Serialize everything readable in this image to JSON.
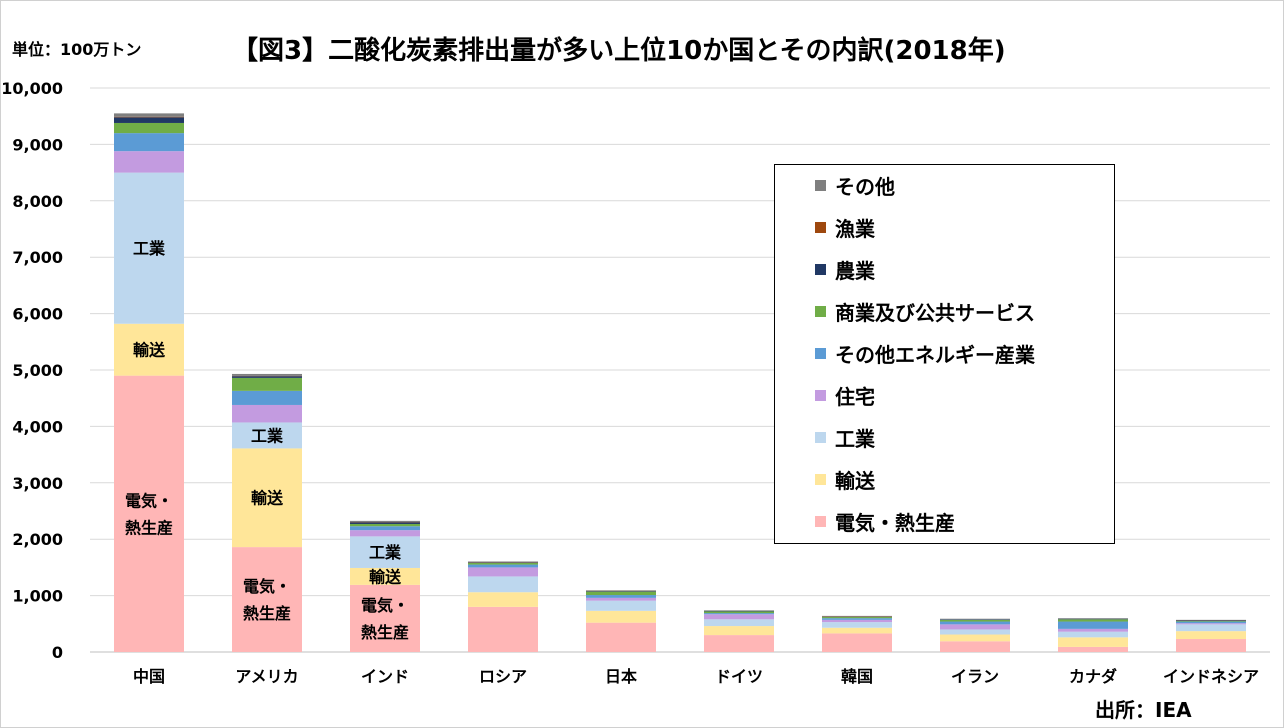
{
  "header": {
    "unit": "単位：100万トン",
    "title": "【図3】二酸化炭素排出量が多い上位10か国とその内訳(2018年)",
    "source": "出所：IEA"
  },
  "chart_data": {
    "type": "bar",
    "stacked": true,
    "categories": [
      "中国",
      "アメリカ",
      "インド",
      "ロシア",
      "日本",
      "ドイツ",
      "韓国",
      "イラン",
      "カナダ",
      "インドネシア"
    ],
    "ylim": [
      0,
      10000
    ],
    "yticks": [
      "0",
      "1,000",
      "2,000",
      "3,000",
      "4,000",
      "5,000",
      "6,000",
      "7,000",
      "8,000",
      "9,000",
      "10,000"
    ],
    "grid": true,
    "legend_position": "right",
    "series": [
      {
        "name": "電気・熱生産",
        "color": "#FFB6B6",
        "values": [
          4900,
          1860,
          1190,
          800,
          520,
          300,
          330,
          190,
          90,
          230
        ]
      },
      {
        "name": "輸送",
        "color": "#FFE699",
        "values": [
          920,
          1750,
          300,
          260,
          210,
          160,
          100,
          120,
          170,
          140
        ]
      },
      {
        "name": "工業",
        "color": "#BDD7EE",
        "values": [
          2680,
          460,
          560,
          280,
          180,
          120,
          100,
          90,
          100,
          120
        ]
      },
      {
        "name": "住宅",
        "color": "#C39BE0",
        "values": [
          380,
          310,
          110,
          160,
          50,
          90,
          40,
          90,
          50,
          20
        ]
      },
      {
        "name": "その他エネルギー産業",
        "color": "#5B9BD5",
        "values": [
          320,
          250,
          70,
          50,
          50,
          20,
          30,
          50,
          130,
          30
        ]
      },
      {
        "name": "商業及び公共サービス",
        "color": "#70AD47",
        "values": [
          180,
          230,
          40,
          30,
          60,
          30,
          20,
          30,
          40,
          10
        ]
      },
      {
        "name": "農業",
        "color": "#203864",
        "values": [
          100,
          30,
          30,
          10,
          10,
          10,
          5,
          10,
          10,
          10
        ]
      },
      {
        "name": "漁業",
        "color": "#9E480E",
        "values": [
          10,
          5,
          5,
          5,
          5,
          0,
          5,
          0,
          0,
          5
        ]
      },
      {
        "name": "その他",
        "color": "#7F7F7F",
        "values": [
          60,
          35,
          20,
          10,
          10,
          10,
          10,
          10,
          10,
          5
        ]
      }
    ],
    "bar_labels": [
      {
        "category": "中国",
        "series": "電気・熱生産",
        "lines": [
          "電気・",
          "熱生産"
        ]
      },
      {
        "category": "中国",
        "series": "輸送",
        "lines": [
          "輸送"
        ]
      },
      {
        "category": "中国",
        "series": "工業",
        "lines": [
          "工業"
        ]
      },
      {
        "category": "アメリカ",
        "series": "電気・熱生産",
        "lines": [
          "電気・",
          "熱生産"
        ]
      },
      {
        "category": "アメリカ",
        "series": "輸送",
        "lines": [
          "輸送"
        ]
      },
      {
        "category": "アメリカ",
        "series": "工業",
        "lines": [
          "工業"
        ]
      },
      {
        "category": "インド",
        "series": "電気・熱生産",
        "lines": [
          "電気・",
          "熱生産"
        ]
      },
      {
        "category": "インド",
        "series": "輸送",
        "lines": [
          "輸送"
        ]
      },
      {
        "category": "インド",
        "series": "工業",
        "lines": [
          "工業"
        ]
      }
    ]
  },
  "legend": {
    "items": [
      {
        "label": "その他",
        "color": "#7F7F7F"
      },
      {
        "label": "漁業",
        "color": "#9E480E"
      },
      {
        "label": "農業",
        "color": "#203864"
      },
      {
        "label": "商業及び公共サービス",
        "color": "#70AD47"
      },
      {
        "label": "その他エネルギー産業",
        "color": "#5B9BD5"
      },
      {
        "label": "住宅",
        "color": "#C39BE0"
      },
      {
        "label": "工業",
        "color": "#BDD7EE"
      },
      {
        "label": "輸送",
        "color": "#FFE699"
      },
      {
        "label": "電気・熱生産",
        "color": "#FFB6B6"
      }
    ]
  }
}
